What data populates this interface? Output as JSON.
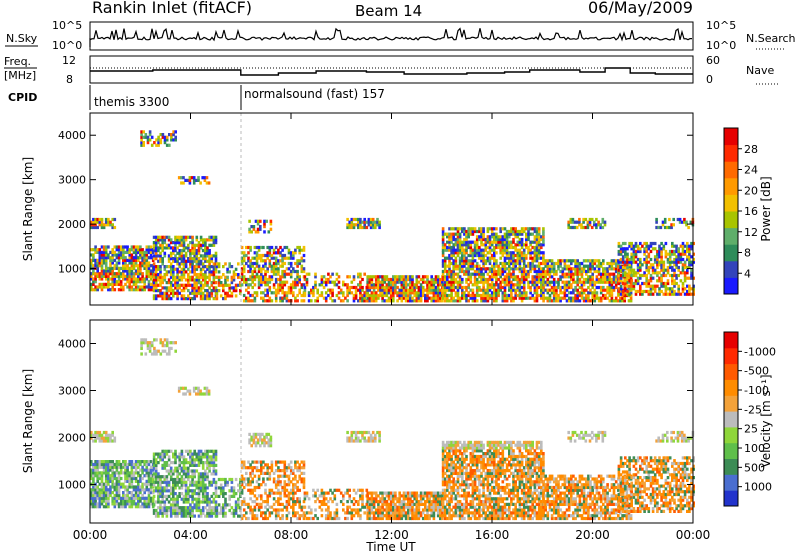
{
  "header": {
    "title": "Rankin Inlet (fitACF)",
    "beam": "Beam 14",
    "date": "06/May/2009"
  },
  "top_panels": {
    "nsky_label": "N.Sky",
    "nsky_ticks": [
      "10^5",
      "10^0"
    ],
    "nsearch_label": "N.Search",
    "nsearch_ticks": [
      "10^5",
      "10^0"
    ],
    "freq_label": "Freq.",
    "freq_unit": "[MHz]",
    "freq_ticks": [
      "12",
      "8"
    ],
    "nave_label": "Nave",
    "nave_ticks": [
      "60",
      "0"
    ],
    "cpid_label": "CPID",
    "cpid_segments": [
      {
        "label": "themis 3300",
        "start_hour": 0
      },
      {
        "label": "normalsound (fast) 157",
        "start_hour": 6
      }
    ]
  },
  "chart_data": [
    {
      "type": "heatmap",
      "title": "",
      "xlabel": "",
      "ylabel": "Slant Range [km]",
      "xlim": [
        0,
        24
      ],
      "ylim": [
        180,
        4500
      ],
      "y_ticks": [
        "1000",
        "2000",
        "3000",
        "4000"
      ],
      "colorbar": {
        "label": "Power [dB]",
        "ticks": [
          "4",
          "8",
          "12",
          "16",
          "20",
          "24",
          "28"
        ],
        "colors": [
          "#1a1aff",
          "#3344bb",
          "#2e8c5a",
          "#5fae6a",
          "#a8c400",
          "#f2c000",
          "#ff9a00",
          "#ff6a00",
          "#ff2a00",
          "#e60000"
        ]
      }
    },
    {
      "type": "heatmap",
      "title": "",
      "xlabel": "Time UT",
      "ylabel": "Slant Range [km]",
      "xlim": [
        0,
        24
      ],
      "ylim": [
        180,
        4500
      ],
      "y_ticks": [
        "1000",
        "2000",
        "3000",
        "4000"
      ],
      "x_ticks": [
        "00:00",
        "04:00",
        "08:00",
        "12:00",
        "16:00",
        "20:00",
        "00:00"
      ],
      "colorbar": {
        "label": "Velocity [m s⁻¹]",
        "ticks": [
          "1000",
          "500",
          "100",
          "25",
          "-25",
          "-100",
          "-500",
          "-1000"
        ],
        "colors": [
          "#2233cc",
          "#4a6ed0",
          "#3c8c55",
          "#5fbf4a",
          "#8fd63a",
          "#bcbcbc",
          "#f3a23a",
          "#ff8c00",
          "#ff5a00",
          "#ff2a00",
          "#e60000"
        ]
      }
    }
  ],
  "time_axis_label": "Time UT"
}
